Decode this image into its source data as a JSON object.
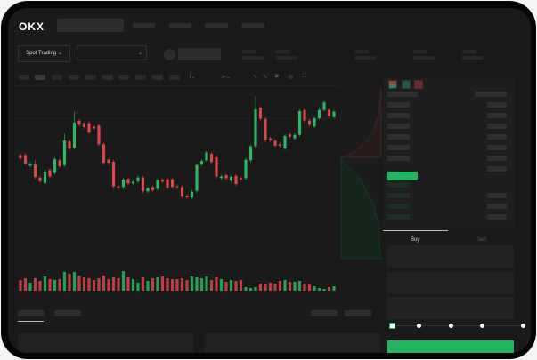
{
  "header": {
    "logo": "OKX"
  },
  "market": {
    "mode_label": "Spot Trading",
    "mode_chevron": "⌄",
    "pair_chevron": "⌄"
  },
  "toolbar": {
    "icons": [
      "indicator-icon",
      "draw-line-icon",
      "pencil-icon",
      "camera-icon",
      "settings-icon",
      "fullscreen-icon"
    ]
  },
  "orderbook": {
    "view_icons": [
      "orderbook-both-icon",
      "orderbook-bids-icon",
      "orderbook-asks-icon"
    ]
  },
  "trade": {
    "tabs": [
      "Buy",
      "Sell"
    ],
    "active_tab": "Buy"
  },
  "colors": {
    "up": "#2bb763",
    "down": "#d9474a",
    "accent": "#23b460",
    "background": "#1a1a1a"
  },
  "chart_data": {
    "type": "candlestick",
    "candles": [
      [
        46.3,
        43.8
      ],
      [
        46.3,
        39.3
      ],
      [
        37.5,
        38.8
      ],
      [
        38.8,
        28,
        42.5
      ],
      [
        27.5,
        24.5
      ],
      [
        22.5,
        32.5
      ],
      [
        33.8,
        28.3
      ],
      [
        31.3,
        43
      ],
      [
        42,
        37
      ],
      [
        38,
        58.8,
        64.5
      ],
      [
        58,
        51.8
      ],
      [
        52.5,
        73.8,
        83
      ],
      [
        75.5,
        72
      ],
      [
        73.3,
        70
      ],
      [
        73.3,
        65.5
      ],
      [
        70.5,
        68.8
      ],
      [
        71.3,
        55.5
      ],
      [
        55.5,
        40
      ],
      [
        42.5,
        40
      ],
      [
        40.8,
        20
      ],
      [
        20,
        18.8
      ],
      [
        19.5,
        25.8
      ],
      [
        26.3,
        22.5
      ],
      [
        22.5,
        23.8
      ],
      [
        24.3,
        27.5
      ],
      [
        27.5,
        15.8
      ],
      [
        15.8,
        18.5
      ],
      [
        19.5,
        16.8
      ],
      [
        18,
        25.3
      ],
      [
        25.5,
        24
      ],
      [
        26,
        18.8
      ],
      [
        26,
        19.5
      ],
      [
        20,
        19.5
      ],
      [
        19.5,
        11.3
      ],
      [
        12,
        10.8
      ],
      [
        10.5,
        15.5
      ],
      [
        16.3,
        38
      ],
      [
        38.8,
        41.5
      ],
      [
        41.8,
        48.8
      ],
      [
        47.5,
        40.5
      ],
      [
        44.5,
        28.3
      ],
      [
        27,
        28.3
      ],
      [
        29.5,
        26.8
      ],
      [
        25,
        28
      ],
      [
        28.8,
        22
      ],
      [
        27,
        26
      ],
      [
        27,
        42.5
      ],
      [
        42,
        53.8
      ],
      [
        53.8,
        85,
        96
      ],
      [
        86.3,
        77
      ],
      [
        77,
        58.8
      ],
      [
        60.5,
        58.8
      ],
      [
        58.5,
        54.3
      ],
      [
        55.5,
        54.3
      ],
      [
        52,
        62.5
      ],
      [
        63.8,
        62
      ],
      [
        60.5,
        63.5
      ],
      [
        63.5,
        83.5
      ],
      [
        84.5,
        75.5
      ],
      [
        75.5,
        72
      ],
      [
        70.5,
        77.5
      ],
      [
        77.5,
        84.5
      ],
      [
        84.5,
        90.8
      ],
      [
        84.5,
        79.5
      ],
      [
        78.5,
        83
      ]
    ],
    "volumes": [
      12,
      14,
      9,
      14,
      11,
      16,
      13,
      12,
      13,
      21,
      19,
      21,
      17,
      15,
      14,
      12,
      14,
      17,
      13,
      15,
      14,
      22,
      15,
      13,
      9,
      15,
      11,
      14,
      15,
      16,
      14,
      13,
      13,
      14,
      12,
      16,
      15,
      14,
      16,
      12,
      15,
      13,
      10,
      12,
      11,
      12,
      4,
      3,
      4,
      8,
      7,
      9,
      8,
      11,
      12,
      10,
      10,
      11,
      8,
      7,
      5,
      3,
      2,
      4,
      5
    ]
  }
}
